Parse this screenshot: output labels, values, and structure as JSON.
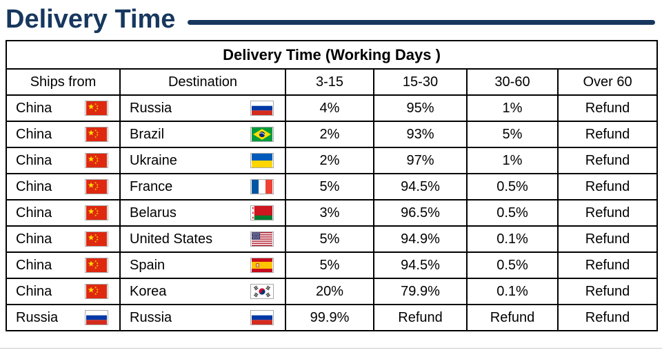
{
  "header": {
    "title": "Delivery Time"
  },
  "colors": {
    "accent": "#17375e",
    "table_border": "#000000"
  },
  "chart_data": {
    "type": "table",
    "title": "Delivery Time (Working Days )",
    "columns": [
      "Ships from",
      "Destination",
      "3-15",
      "15-30",
      "30-60",
      "Over 60"
    ],
    "rows": [
      {
        "ships_from": "China",
        "ships_from_flag": "china",
        "destination": "Russia",
        "destination_flag": "russia",
        "d3_15": "4%",
        "d15_30": "95%",
        "d30_60": "1%",
        "over_60": "Refund"
      },
      {
        "ships_from": "China",
        "ships_from_flag": "china",
        "destination": "Brazil",
        "destination_flag": "brazil",
        "d3_15": "2%",
        "d15_30": "93%",
        "d30_60": "5%",
        "over_60": "Refund"
      },
      {
        "ships_from": "China",
        "ships_from_flag": "china",
        "destination": "Ukraine",
        "destination_flag": "ukraine",
        "d3_15": "2%",
        "d15_30": "97%",
        "d30_60": "1%",
        "over_60": "Refund"
      },
      {
        "ships_from": "China",
        "ships_from_flag": "china",
        "destination": "France",
        "destination_flag": "france",
        "d3_15": "5%",
        "d15_30": "94.5%",
        "d30_60": "0.5%",
        "over_60": "Refund"
      },
      {
        "ships_from": "China",
        "ships_from_flag": "china",
        "destination": "Belarus",
        "destination_flag": "belarus",
        "d3_15": "3%",
        "d15_30": "96.5%",
        "d30_60": "0.5%",
        "over_60": "Refund"
      },
      {
        "ships_from": "China",
        "ships_from_flag": "china",
        "destination": "United States",
        "destination_flag": "usa",
        "d3_15": "5%",
        "d15_30": "94.9%",
        "d30_60": "0.1%",
        "over_60": "Refund"
      },
      {
        "ships_from": "China",
        "ships_from_flag": "china",
        "destination": "Spain",
        "destination_flag": "spain",
        "d3_15": "5%",
        "d15_30": "94.5%",
        "d30_60": "0.5%",
        "over_60": "Refund"
      },
      {
        "ships_from": "China",
        "ships_from_flag": "china",
        "destination": "Korea",
        "destination_flag": "korea",
        "d3_15": "20%",
        "d15_30": "79.9%",
        "d30_60": "0.1%",
        "over_60": "Refund"
      },
      {
        "ships_from": "Russia",
        "ships_from_flag": "russia",
        "destination": "Russia",
        "destination_flag": "russia",
        "d3_15": "99.9%",
        "d15_30": "Refund",
        "d30_60": "Refund",
        "over_60": "Refund"
      }
    ]
  }
}
